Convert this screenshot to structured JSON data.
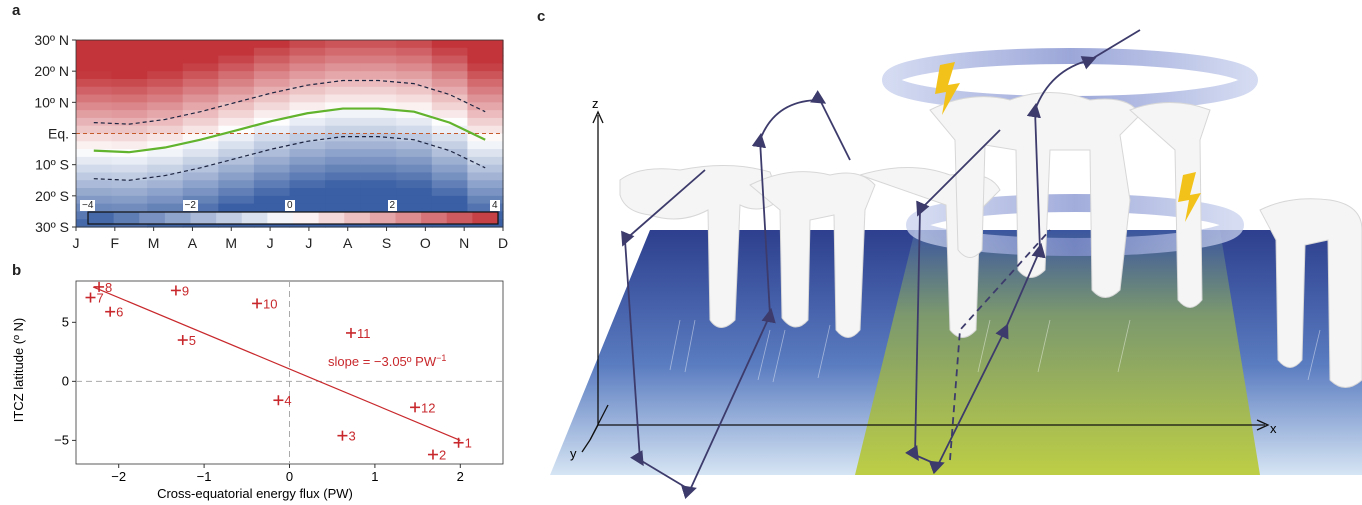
{
  "panels": {
    "a": "a",
    "b": "b",
    "c": "c"
  },
  "chart_data": [
    {
      "type": "heatmap",
      "x_categories": [
        "J",
        "F",
        "M",
        "A",
        "M",
        "J",
        "J",
        "A",
        "S",
        "O",
        "N",
        "D"
      ],
      "y_ticks": [
        {
          "label": "30º N",
          "lat": 30
        },
        {
          "label": "20º N",
          "lat": 20
        },
        {
          "label": "10º N",
          "lat": 10
        },
        {
          "label": "Eq.",
          "lat": 0
        },
        {
          "label": "10º S",
          "lat": -10
        },
        {
          "label": "20º S",
          "lat": -20
        },
        {
          "label": "30º S",
          "lat": -30
        }
      ],
      "ylim": [
        -30,
        30
      ],
      "colorbar": {
        "min": -4,
        "max": 4,
        "tick_labels": [
          "−4",
          "−2",
          "0",
          "2",
          "4"
        ],
        "tick_values": [
          -4,
          -2,
          0,
          2,
          4
        ]
      },
      "colors": {
        "cold": "#3a5fa4",
        "neutral": "#ffffff",
        "warm": "#c2343a",
        "itcz_line": "#62b32d",
        "equator_line": "#c45a2a"
      },
      "itcz_latitude": [
        -5.5,
        -6,
        -4.5,
        -2,
        1,
        4,
        6.5,
        8,
        8,
        7,
        3.5,
        -2
      ],
      "equator_dashed": true
    },
    {
      "type": "scatter",
      "xlabel": "Cross-equatorial energy flux (PW)",
      "ylabel": "ITCZ latitude (º N)",
      "xlim": [
        -2.5,
        2.5
      ],
      "ylim": [
        -7,
        8.5
      ],
      "x_ticks": [
        -2,
        -1,
        0,
        1,
        2
      ],
      "x_tick_labels": [
        "−2",
        "−1",
        "0",
        "1",
        "2"
      ],
      "y_ticks": [
        -5,
        0,
        5
      ],
      "y_tick_labels": [
        "−5",
        "0",
        "5"
      ],
      "points": [
        {
          "label": "1",
          "x": 1.98,
          "y": -5.2
        },
        {
          "label": "2",
          "x": 1.68,
          "y": -6.2
        },
        {
          "label": "3",
          "x": 0.62,
          "y": -4.6
        },
        {
          "label": "4",
          "x": -0.13,
          "y": -1.6
        },
        {
          "label": "5",
          "x": -1.25,
          "y": 3.5
        },
        {
          "label": "6",
          "x": -2.1,
          "y": 5.9
        },
        {
          "label": "7",
          "x": -2.33,
          "y": 7.1
        },
        {
          "label": "8",
          "x": -2.23,
          "y": 8.0
        },
        {
          "label": "9",
          "x": -1.33,
          "y": 7.7
        },
        {
          "label": "10",
          "x": -0.38,
          "y": 6.6
        },
        {
          "label": "11",
          "x": 0.72,
          "y": 4.1
        },
        {
          "label": "12",
          "x": 1.47,
          "y": -2.2
        }
      ],
      "fit": {
        "x": [
          -2.3,
          2.0
        ],
        "y": [
          8.0,
          -5.0
        ]
      },
      "annotation": "slope = −3.05º PW",
      "annotation_sup": "−1",
      "colors": {
        "points": "#c8282c",
        "dashed": "#aaaaaa"
      }
    }
  ],
  "diagram_c": {
    "axis_labels": {
      "x": "x",
      "y": "y",
      "z": "z"
    },
    "colors": {
      "sea": "#3a5aa5",
      "sea_light": "#c5d8ee",
      "warm_patch": "#b9cb3a",
      "circulation": "#3d3b6b",
      "lightning": "#f2c21b",
      "ring": "#7f90cc"
    }
  }
}
